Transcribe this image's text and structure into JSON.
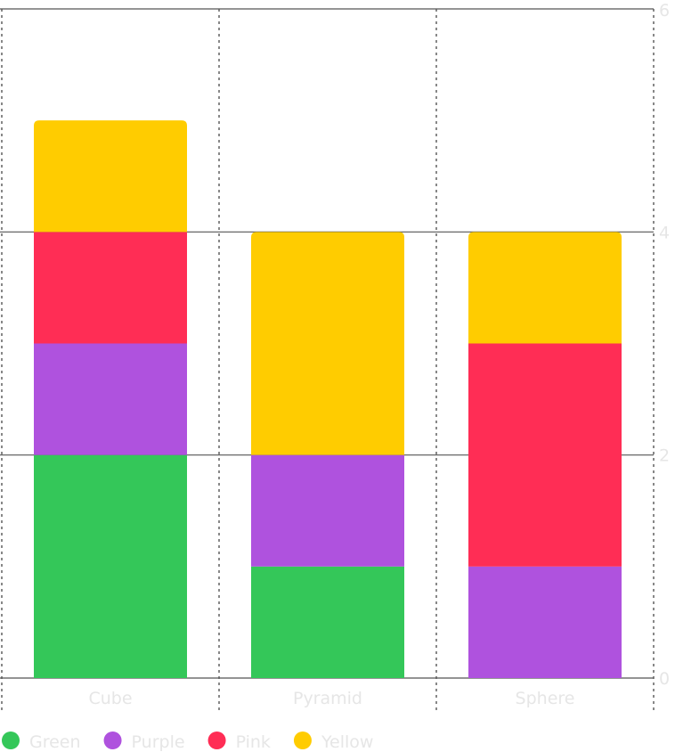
{
  "chart_data": {
    "type": "bar",
    "stacked": true,
    "categories": [
      "Cube",
      "Pyramid",
      "Sphere"
    ],
    "series": [
      {
        "name": "Green",
        "color": "#34C759",
        "values": [
          2,
          1,
          0
        ]
      },
      {
        "name": "Purple",
        "color": "#AF52DE",
        "values": [
          1,
          1,
          1
        ]
      },
      {
        "name": "Pink",
        "color": "#FF2D55",
        "values": [
          1,
          0,
          2
        ]
      },
      {
        "name": "Yellow",
        "color": "#FFCC00",
        "values": [
          1,
          2,
          1
        ]
      }
    ],
    "ylim": [
      0,
      6
    ],
    "y_ticks": [
      "0",
      "2",
      "4",
      "6"
    ],
    "y_axis_position": "right",
    "grid": true,
    "legend_position": "bottom-left"
  }
}
